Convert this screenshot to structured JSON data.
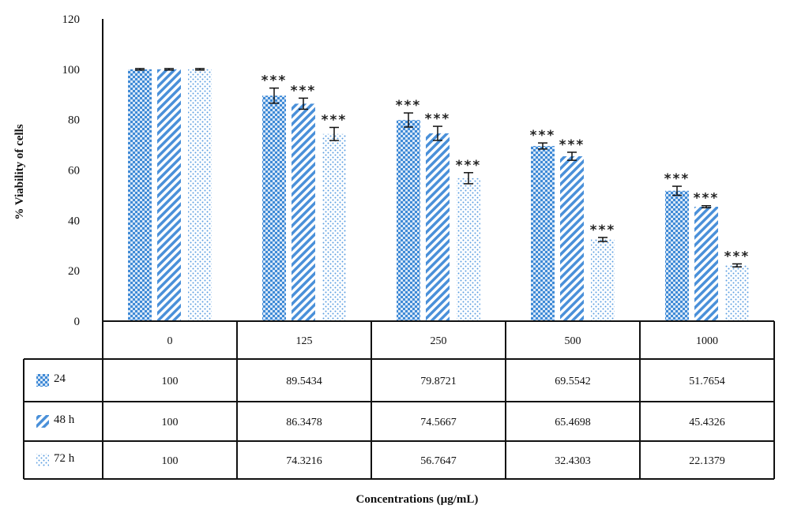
{
  "chart_data": {
    "type": "bar",
    "title": "",
    "xlabel": "Concentrations (µg/mL)",
    "ylabel": "% Viability of cells",
    "ylim": [
      0,
      120
    ],
    "yticks": [
      0,
      20,
      40,
      60,
      80,
      100,
      120
    ],
    "categories": [
      "0",
      "125",
      "250",
      "500",
      "1000"
    ],
    "grid": false,
    "legend": "data-table-left",
    "series": [
      {
        "name": "24",
        "values": [
          100,
          89.5434,
          79.8721,
          69.5542,
          51.7654
        ],
        "value_labels": [
          "100",
          "89.5434",
          "79.8721",
          "69.5542",
          "51.7654"
        ],
        "errors": [
          0.3,
          3.0,
          2.8,
          1.2,
          1.8
        ],
        "significance": [
          "",
          "***",
          "***",
          "***",
          "***"
        ],
        "pattern": "crosshatch",
        "color": "#4a90d9"
      },
      {
        "name": "48 h",
        "values": [
          100,
          86.3478,
          74.5667,
          65.4698,
          45.4326
        ],
        "value_labels": [
          "100",
          "86.3478",
          "74.5667",
          "65.4698",
          "45.4326"
        ],
        "errors": [
          0.3,
          2.2,
          2.8,
          1.6,
          0.4
        ],
        "significance": [
          "",
          "***",
          "***",
          "***",
          "***"
        ],
        "pattern": "diagonal",
        "color": "#4a90d9"
      },
      {
        "name": "72 h",
        "values": [
          100,
          74.3216,
          56.7647,
          32.4303,
          22.1379
        ],
        "value_labels": [
          "100",
          "74.3216",
          "56.7647",
          "32.4303",
          "22.1379"
        ],
        "errors": [
          0.3,
          2.6,
          2.2,
          0.8,
          0.6
        ],
        "significance": [
          "",
          "***",
          "***",
          "***",
          "***"
        ],
        "pattern": "dotted",
        "color": "#4a90d9"
      }
    ]
  }
}
